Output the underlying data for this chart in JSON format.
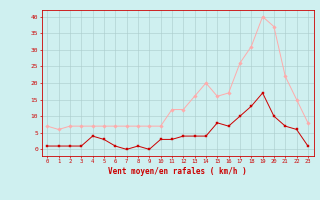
{
  "hours": [
    0,
    1,
    2,
    3,
    4,
    5,
    6,
    7,
    8,
    9,
    10,
    11,
    12,
    13,
    14,
    15,
    16,
    17,
    18,
    19,
    20,
    21,
    22,
    23
  ],
  "rafales": [
    7,
    6,
    7,
    7,
    7,
    7,
    7,
    7,
    7,
    7,
    7,
    12,
    12,
    16,
    20,
    16,
    17,
    26,
    31,
    40,
    37,
    22,
    15,
    8
  ],
  "vent_moyen": [
    1,
    1,
    1,
    1,
    4,
    3,
    1,
    0,
    1,
    0,
    3,
    3,
    4,
    4,
    4,
    8,
    7,
    10,
    13,
    17,
    10,
    7,
    6,
    1
  ],
  "bg_color": "#cff0f0",
  "grid_color": "#aacccc",
  "line_color_rafales": "#ffaaaa",
  "line_color_vent": "#cc0000",
  "marker_color_rafales": "#ffaaaa",
  "marker_color_vent": "#cc0000",
  "xlabel": "Vent moyen/en rafales ( km/h )",
  "xlabel_color": "#cc0000",
  "tick_color": "#cc0000",
  "ylim": [
    -2,
    42
  ],
  "yticks": [
    0,
    5,
    10,
    15,
    20,
    25,
    30,
    35,
    40
  ],
  "axis_color": "#cc0000"
}
